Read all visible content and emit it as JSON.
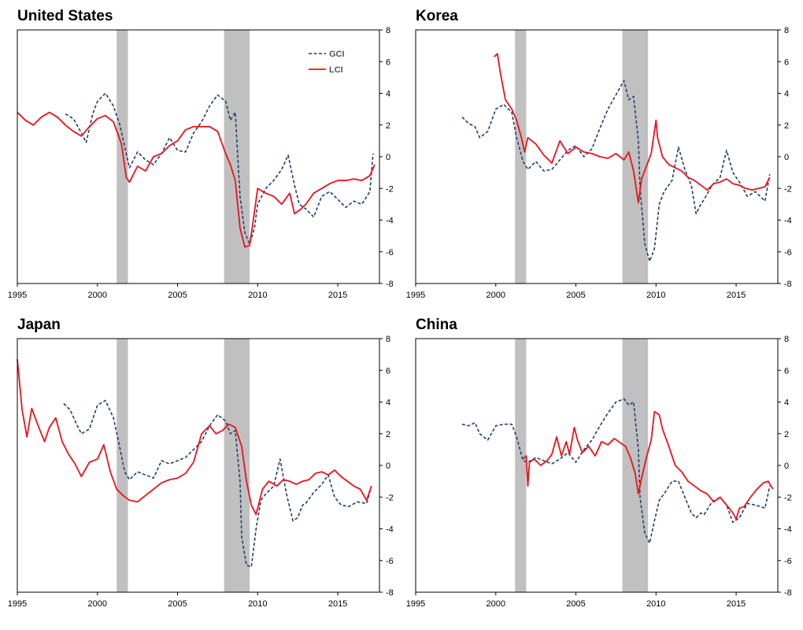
{
  "colors": {
    "gci": "#1f3f6e",
    "lci": "#e8141c",
    "recession": "#c0c0c0"
  },
  "chart_data": [
    {
      "type": "line",
      "title": "United States",
      "xlim": [
        1995,
        2017.6
      ],
      "ylim": [
        -8,
        8
      ],
      "x_ticks": [
        1995,
        2000,
        2005,
        2010,
        2015
      ],
      "y_ticks": [
        8,
        6,
        4,
        2,
        0,
        -2,
        -4,
        -6,
        -8
      ],
      "y_tick_labels": [
        "8",
        "6",
        "4",
        "2",
        "0",
        "-2",
        "-4",
        "-6",
        "-8"
      ],
      "y_axis_side": "right",
      "legend": {
        "position": "top-right",
        "entries": [
          "GCI",
          "LCI"
        ]
      },
      "shaded_periods": [
        [
          2001.2,
          2001.9
        ],
        [
          2007.9,
          2009.5
        ]
      ],
      "series": [
        {
          "name": "GCI",
          "style": "dashed",
          "x": [
            1998,
            1998.5,
            1999,
            1999.3,
            1999.7,
            2000,
            2000.5,
            2001,
            2001.4,
            2001.8,
            2002,
            2002.5,
            2003,
            2003.5,
            2004,
            2004.5,
            2005,
            2005.5,
            2006,
            2006.5,
            2007,
            2007.5,
            2008,
            2008.3,
            2008.6,
            2008.9,
            2009.2,
            2009.5,
            2009.8,
            2010,
            2010.5,
            2011,
            2011.5,
            2011.9,
            2012.3,
            2012.6,
            2013,
            2013.5,
            2014,
            2014.5,
            2015,
            2015.5,
            2016,
            2016.5,
            2017,
            2017.2
          ],
          "y": [
            2.7,
            2.4,
            1.5,
            0.9,
            2.7,
            3.5,
            4.0,
            3.2,
            2.0,
            0.2,
            -0.7,
            0.3,
            -0.2,
            -0.5,
            0.2,
            1.2,
            0.4,
            0.3,
            1.5,
            2.2,
            3.2,
            3.9,
            3.5,
            2.3,
            2.8,
            -2.5,
            -4.8,
            -5.5,
            -4.5,
            -3.0,
            -2.0,
            -1.5,
            -0.8,
            0.1,
            -1.8,
            -3.0,
            -3.3,
            -3.8,
            -2.5,
            -2.2,
            -2.7,
            -3.2,
            -2.8,
            -3.0,
            -2.2,
            0.2
          ]
        },
        {
          "name": "LCI",
          "style": "solid",
          "x": [
            1995,
            1995.5,
            1996,
            1996.5,
            1997,
            1997.5,
            1998,
            1998.5,
            1999,
            1999.5,
            2000,
            2000.5,
            2001,
            2001.5,
            2001.8,
            2002,
            2002.5,
            2003,
            2003.5,
            2004,
            2004.5,
            2005,
            2005.5,
            2006,
            2006.5,
            2007,
            2007.5,
            2008,
            2008.3,
            2008.6,
            2008.9,
            2009.2,
            2009.5,
            2009.8,
            2010,
            2010.5,
            2011,
            2011.5,
            2012,
            2012.3,
            2012.7,
            2013,
            2013.5,
            2014,
            2014.5,
            2015,
            2015.5,
            2016,
            2016.5,
            2017,
            2017.3
          ],
          "y": [
            2.8,
            2.3,
            2.0,
            2.5,
            2.8,
            2.5,
            2.0,
            1.6,
            1.3,
            1.9,
            2.4,
            2.6,
            2.2,
            0.8,
            -1.3,
            -1.6,
            -0.6,
            -0.9,
            0.0,
            0.2,
            0.7,
            1.0,
            1.7,
            1.9,
            1.9,
            1.9,
            1.6,
            0.2,
            -0.5,
            -1.5,
            -4.5,
            -5.7,
            -5.6,
            -3.5,
            -2.0,
            -2.3,
            -2.5,
            -3.0,
            -2.3,
            -3.6,
            -3.3,
            -3.0,
            -2.3,
            -2.0,
            -1.7,
            -1.5,
            -1.5,
            -1.4,
            -1.5,
            -1.2,
            -0.5
          ]
        }
      ]
    },
    {
      "type": "line",
      "title": "Korea",
      "xlim": [
        1995,
        2017.6
      ],
      "ylim": [
        -8,
        8
      ],
      "x_ticks": [
        1995,
        2000,
        2005,
        2010,
        2015
      ],
      "y_ticks": [
        8,
        6,
        4,
        2,
        0,
        -2,
        -4,
        -6,
        -8
      ],
      "y_tick_labels": [
        "8",
        "6",
        "4",
        "2",
        "0",
        "-2",
        "-4",
        "-6",
        "-8"
      ],
      "y_axis_side": "right",
      "legend": null,
      "shaded_periods": [
        [
          2001.2,
          2001.9
        ],
        [
          2007.9,
          2009.5
        ]
      ],
      "series": [
        {
          "name": "GCI",
          "style": "dashed",
          "x": [
            1997.9,
            1998.3,
            1998.7,
            1999,
            1999.5,
            2000,
            2000.5,
            2001,
            2001.3,
            2001.7,
            2002,
            2002.5,
            2003,
            2003.5,
            2004,
            2004.5,
            2005,
            2005.5,
            2006,
            2006.5,
            2007,
            2007.5,
            2008,
            2008.3,
            2008.6,
            2008.9,
            2009,
            2009.3,
            2009.6,
            2009.9,
            2010.2,
            2010.5,
            2011,
            2011.4,
            2011.8,
            2012.2,
            2012.5,
            2012.8,
            2013,
            2013.5,
            2014,
            2014.4,
            2014.8,
            2015.2,
            2015.7,
            2016.2,
            2016.8,
            2017.1
          ],
          "y": [
            2.5,
            2.1,
            1.9,
            1.2,
            1.6,
            3.0,
            3.3,
            2.8,
            1.2,
            -0.3,
            -0.8,
            -0.3,
            -0.9,
            -0.8,
            -0.2,
            0.4,
            0.7,
            0.0,
            0.5,
            1.8,
            3.0,
            3.9,
            4.8,
            3.6,
            3.8,
            1.0,
            -2.0,
            -5.5,
            -6.6,
            -5.8,
            -3.0,
            -2.2,
            -1.5,
            0.6,
            -0.8,
            -1.8,
            -3.6,
            -3.0,
            -2.7,
            -1.8,
            -1.3,
            0.4,
            -1.0,
            -1.6,
            -2.5,
            -2.2,
            -2.8,
            -1.1
          ]
        },
        {
          "name": "LCI",
          "style": "solid",
          "x": [
            1999.9,
            2000.1,
            2000.3,
            2000.6,
            2001,
            2001.3,
            2001.6,
            2001.8,
            2002,
            2002.5,
            2003,
            2003.5,
            2004,
            2004.5,
            2005,
            2005.5,
            2006,
            2006.5,
            2007,
            2007.5,
            2008,
            2008.3,
            2008.6,
            2008.9,
            2009.1,
            2009.4,
            2009.7,
            2010,
            2010.1,
            2010.4,
            2010.8,
            2011.2,
            2011.6,
            2012,
            2012.4,
            2012.8,
            2013.2,
            2013.6,
            2014,
            2014.4,
            2014.8,
            2015.2,
            2015.6,
            2016,
            2016.4,
            2016.8,
            2017.1
          ],
          "y": [
            6.3,
            6.5,
            5.2,
            3.6,
            3.0,
            2.3,
            1.2,
            0.3,
            1.2,
            0.8,
            0.1,
            -0.4,
            1.0,
            0.2,
            0.6,
            0.3,
            0.2,
            0.0,
            -0.1,
            0.2,
            -0.2,
            0.3,
            -0.9,
            -2.9,
            -1.4,
            -0.6,
            0.2,
            2.3,
            1.2,
            0.0,
            -0.5,
            -0.7,
            -0.9,
            -1.3,
            -1.5,
            -1.8,
            -2.1,
            -1.7,
            -1.6,
            -1.4,
            -1.7,
            -1.8,
            -2.0,
            -2.1,
            -2.0,
            -1.9,
            -1.3
          ]
        }
      ]
    },
    {
      "type": "line",
      "title": "Japan",
      "xlim": [
        1995,
        2017.6
      ],
      "ylim": [
        -8,
        8
      ],
      "x_ticks": [
        1995,
        2000,
        2005,
        2010,
        2015
      ],
      "y_ticks": [
        8,
        6,
        4,
        2,
        0,
        -2,
        -4,
        -6,
        -8
      ],
      "y_tick_labels": [
        "8",
        "6",
        "4",
        "2",
        "0",
        "-2",
        "-4",
        "-6",
        "-8"
      ],
      "y_axis_side": "right",
      "legend": null,
      "shaded_periods": [
        [
          2001.2,
          2001.9
        ],
        [
          2007.9,
          2009.5
        ]
      ],
      "series": [
        {
          "name": "GCI",
          "style": "dashed",
          "x": [
            1997.9,
            1998.3,
            1998.7,
            1999,
            1999.5,
            2000,
            2000.5,
            2001,
            2001.3,
            2001.7,
            2002,
            2002.5,
            2003,
            2003.5,
            2004,
            2004.5,
            2005,
            2005.5,
            2006,
            2006.5,
            2007,
            2007.5,
            2008,
            2008.3,
            2008.6,
            2008.9,
            2009,
            2009.3,
            2009.6,
            2009.9,
            2010.2,
            2010.5,
            2011,
            2011.4,
            2011.8,
            2012.2,
            2012.5,
            2012.8,
            2013,
            2013.5,
            2014,
            2014.4,
            2014.8,
            2015.2,
            2015.7,
            2016.2,
            2016.8,
            2017.1
          ],
          "y": [
            3.9,
            3.5,
            2.6,
            2.0,
            2.3,
            3.8,
            4.1,
            3.0,
            1.6,
            -0.4,
            -0.9,
            -0.4,
            -0.6,
            -0.8,
            0.3,
            0.1,
            0.3,
            0.5,
            1.0,
            1.5,
            2.5,
            3.2,
            2.8,
            2.0,
            2.2,
            -1.0,
            -4.5,
            -6.3,
            -6.4,
            -4.0,
            -2.2,
            -1.8,
            -1.3,
            0.4,
            -1.8,
            -3.5,
            -3.3,
            -2.5,
            -2.4,
            -1.7,
            -1.2,
            -0.6,
            -2.0,
            -2.5,
            -2.6,
            -2.3,
            -2.4,
            -1.3
          ]
        },
        {
          "name": "LCI",
          "style": "solid",
          "x": [
            1995,
            1995.3,
            1995.6,
            1995.9,
            1996.3,
            1996.7,
            1997,
            1997.4,
            1997.8,
            1998.2,
            1998.6,
            1999,
            1999.5,
            2000,
            2000.4,
            2000.8,
            2001.2,
            2001.6,
            2002,
            2002.5,
            2003,
            2003.5,
            2004,
            2004.5,
            2005,
            2005.5,
            2006,
            2006.5,
            2007,
            2007.4,
            2007.8,
            2008.2,
            2008.6,
            2009,
            2009.3,
            2009.6,
            2009.9,
            2010.3,
            2010.7,
            2011.2,
            2011.6,
            2012,
            2012.4,
            2012.8,
            2013.2,
            2013.6,
            2014,
            2014.4,
            2014.8,
            2015.2,
            2015.6,
            2016,
            2016.4,
            2016.8,
            2017.1
          ],
          "y": [
            6.7,
            3.5,
            1.8,
            3.6,
            2.5,
            1.5,
            2.4,
            3.0,
            1.5,
            0.7,
            0.1,
            -0.7,
            0.2,
            0.4,
            1.3,
            -0.4,
            -1.5,
            -1.9,
            -2.2,
            -2.3,
            -1.9,
            -1.5,
            -1.1,
            -0.9,
            -0.8,
            -0.5,
            0.2,
            2.0,
            2.5,
            2.0,
            2.2,
            2.6,
            2.4,
            1.2,
            -1.0,
            -2.5,
            -3.1,
            -1.5,
            -1.0,
            -1.3,
            -0.9,
            -1.0,
            -1.2,
            -1.0,
            -0.9,
            -0.5,
            -0.4,
            -0.6,
            -0.3,
            -0.7,
            -1.0,
            -1.3,
            -1.5,
            -2.2,
            -1.3
          ]
        }
      ]
    },
    {
      "type": "line",
      "title": "China",
      "xlim": [
        1995,
        2017.6
      ],
      "ylim": [
        -8,
        8
      ],
      "x_ticks": [
        1995,
        2000,
        2005,
        2010,
        2015
      ],
      "y_ticks": [
        8,
        6,
        4,
        2,
        0,
        -2,
        -4,
        -6,
        -8
      ],
      "y_tick_labels": [
        "8",
        "6",
        "4",
        "2",
        "0",
        "-2",
        "-4",
        "-6",
        "-8"
      ],
      "y_axis_side": "right",
      "legend": null,
      "shaded_periods": [
        [
          2001.2,
          2001.9
        ],
        [
          2007.9,
          2009.5
        ]
      ],
      "series": [
        {
          "name": "GCI",
          "style": "dashed",
          "x": [
            1997.9,
            1998.3,
            1998.7,
            1999,
            1999.5,
            2000,
            2000.5,
            2001,
            2001.3,
            2001.7,
            2002,
            2002.5,
            2003,
            2003.5,
            2004,
            2004.5,
            2005,
            2005.5,
            2006,
            2006.5,
            2007,
            2007.5,
            2008,
            2008.3,
            2008.6,
            2008.9,
            2009,
            2009.3,
            2009.6,
            2009.9,
            2010.2,
            2010.5,
            2011,
            2011.4,
            2011.8,
            2012.2,
            2012.5,
            2012.8,
            2013,
            2013.5,
            2014,
            2014.4,
            2014.8,
            2015.2,
            2015.7,
            2016.2,
            2016.8,
            2017.1
          ],
          "y": [
            2.6,
            2.5,
            2.7,
            2.0,
            1.6,
            2.5,
            2.6,
            2.6,
            1.8,
            0.3,
            0.2,
            0.5,
            0.3,
            0.1,
            0.4,
            0.8,
            0.2,
            1.0,
            1.6,
            2.5,
            3.3,
            4.0,
            4.2,
            3.8,
            4.0,
            1.0,
            -2.0,
            -4.3,
            -4.9,
            -3.5,
            -2.2,
            -1.8,
            -1.0,
            -1.0,
            -2.0,
            -3.0,
            -3.3,
            -3.0,
            -3.1,
            -2.3,
            -2.0,
            -2.5,
            -3.6,
            -3.3,
            -2.4,
            -2.5,
            -2.7,
            -1.3
          ]
        },
        {
          "name": "LCI",
          "style": "solid",
          "x": [
            2001.7,
            2001.9,
            2002,
            2002.1,
            2002.4,
            2002.8,
            2003.2,
            2003.5,
            2003.8,
            2004.1,
            2004.4,
            2004.6,
            2004.9,
            2005.1,
            2005.4,
            2005.8,
            2006.2,
            2006.6,
            2007,
            2007.4,
            2007.8,
            2008.1,
            2008.4,
            2008.7,
            2008.9,
            2009.1,
            2009.4,
            2009.7,
            2009.9,
            2010.2,
            2010.4,
            2010.8,
            2011.2,
            2011.6,
            2012,
            2012.4,
            2012.8,
            2013.2,
            2013.6,
            2014,
            2014.4,
            2014.8,
            2015,
            2015.2,
            2015.5,
            2015.9,
            2016.3,
            2016.7,
            2017,
            2017.3
          ],
          "y": [
            0.4,
            0.6,
            -1.3,
            0.2,
            0.4,
            0.0,
            0.3,
            0.7,
            1.8,
            0.6,
            1.5,
            0.7,
            2.4,
            1.6,
            0.8,
            1.2,
            0.6,
            1.5,
            1.3,
            1.7,
            1.4,
            1.2,
            0.5,
            -0.5,
            -1.8,
            -0.8,
            0.5,
            1.6,
            3.4,
            3.2,
            2.3,
            1.2,
            0.0,
            -0.4,
            -1.0,
            -1.3,
            -1.6,
            -1.8,
            -2.3,
            -2.0,
            -2.5,
            -3.0,
            -3.4,
            -2.7,
            -2.6,
            -2.0,
            -1.5,
            -1.1,
            -1.0,
            -1.5
          ]
        }
      ]
    }
  ]
}
